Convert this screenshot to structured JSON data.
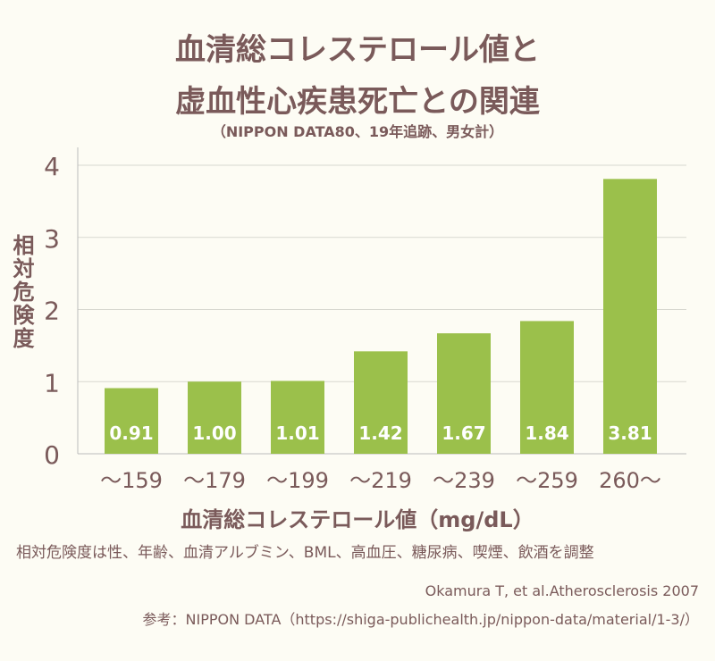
{
  "chart_data": {
    "type": "bar",
    "title": "血清総コレステロール値と",
    "title_line2": "虚血性心疾患死亡との関連",
    "subtitle": "（NIPPON DATA80、19年追跡、男女計）",
    "xlabel": "血清総コレステロール値（mg/dL）",
    "ylabel": "相対危険度",
    "categories": [
      "～159",
      "～179",
      "～199",
      "～219",
      "～239",
      "～259",
      "260～"
    ],
    "values": [
      0.91,
      1.0,
      1.01,
      1.42,
      1.67,
      1.84,
      3.81
    ],
    "labels": [
      "0.91",
      "1.00",
      "1.01",
      "1.42",
      "1.67",
      "1.84",
      "3.81"
    ],
    "ylim": [
      0,
      4
    ],
    "yticks": [
      "0",
      "1",
      "2",
      "3",
      "4"
    ],
    "grid": true,
    "bar_color": "#9bc04b"
  },
  "note": "相対危険度は性、年齢、血清アルブミン、BML、高血圧、糖尿病、喫煙、飲酒を調整",
  "citation": "Okamura T, et al.Atherosclerosis 2007",
  "reference": "参考：NIPPON DATA（https://shiga-publichealth.jp/nippon-data/material/1-3/）"
}
